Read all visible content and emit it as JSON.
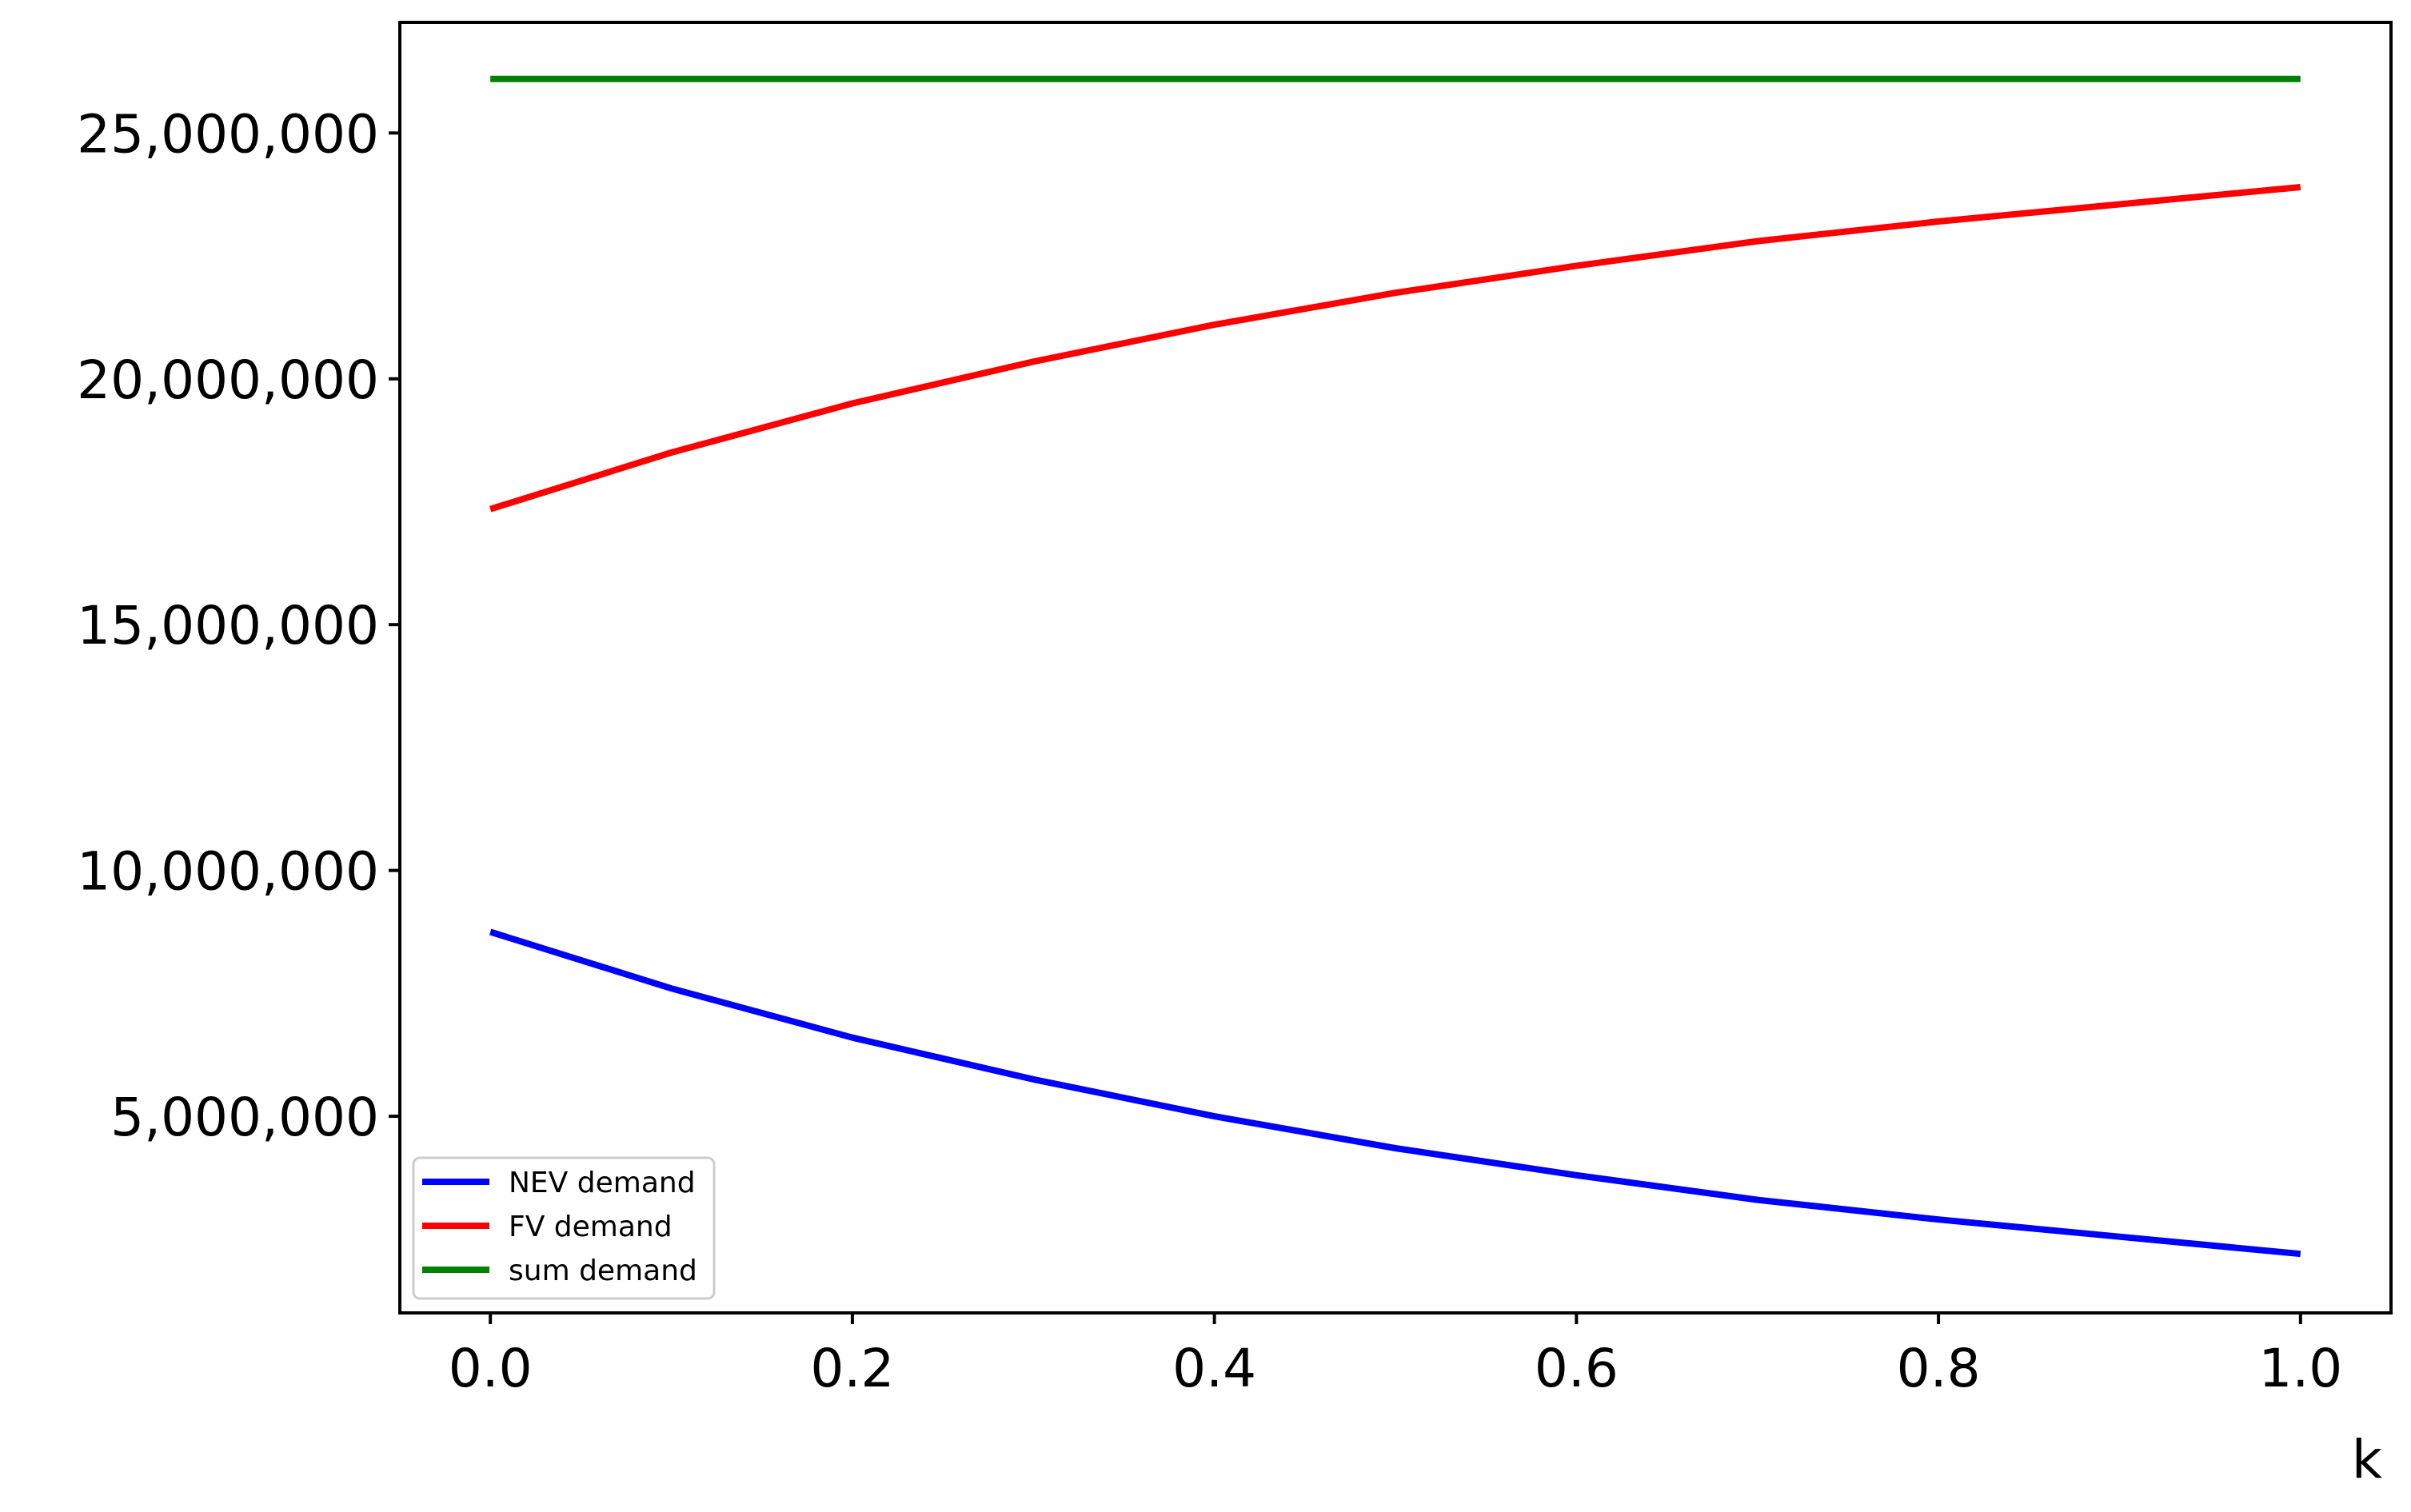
{
  "chart_data": {
    "type": "line",
    "title": "",
    "xlabel": "k",
    "ylabel": "",
    "xlim": [
      -0.05,
      1.05
    ],
    "ylim": [
      1000000,
      27250000
    ],
    "grid": false,
    "legend_position": "lower-left",
    "x_ticks": [
      0.0,
      0.2,
      0.4,
      0.6,
      0.8,
      1.0
    ],
    "x_tick_labels": [
      "0.0",
      "0.2",
      "0.4",
      "0.6",
      "0.8",
      "1.0"
    ],
    "y_ticks": [
      5000000,
      10000000,
      15000000,
      20000000,
      25000000
    ],
    "y_tick_labels": [
      "5,000,000",
      "10,000,000",
      "15,000,000",
      "20,000,000",
      "25,000,000"
    ],
    "x": [
      0.0,
      0.1,
      0.2,
      0.3,
      0.4,
      0.5,
      0.6,
      0.7,
      0.8,
      0.9,
      1.0
    ],
    "series": [
      {
        "name": "NEV demand",
        "color": "#0000ff",
        "values": [
          8750000,
          7600000,
          6600000,
          5750000,
          5000000,
          4350000,
          3800000,
          3300000,
          2900000,
          2550000,
          2200000
        ]
      },
      {
        "name": "FV demand",
        "color": "#ff0000",
        "values": [
          17350000,
          18500000,
          19500000,
          20350000,
          21100000,
          21750000,
          22300000,
          22800000,
          23200000,
          23550000,
          23900000
        ]
      },
      {
        "name": "sum demand",
        "color": "#008000",
        "values": [
          26100000,
          26100000,
          26100000,
          26100000,
          26100000,
          26100000,
          26100000,
          26100000,
          26100000,
          26100000,
          26100000
        ]
      }
    ]
  }
}
